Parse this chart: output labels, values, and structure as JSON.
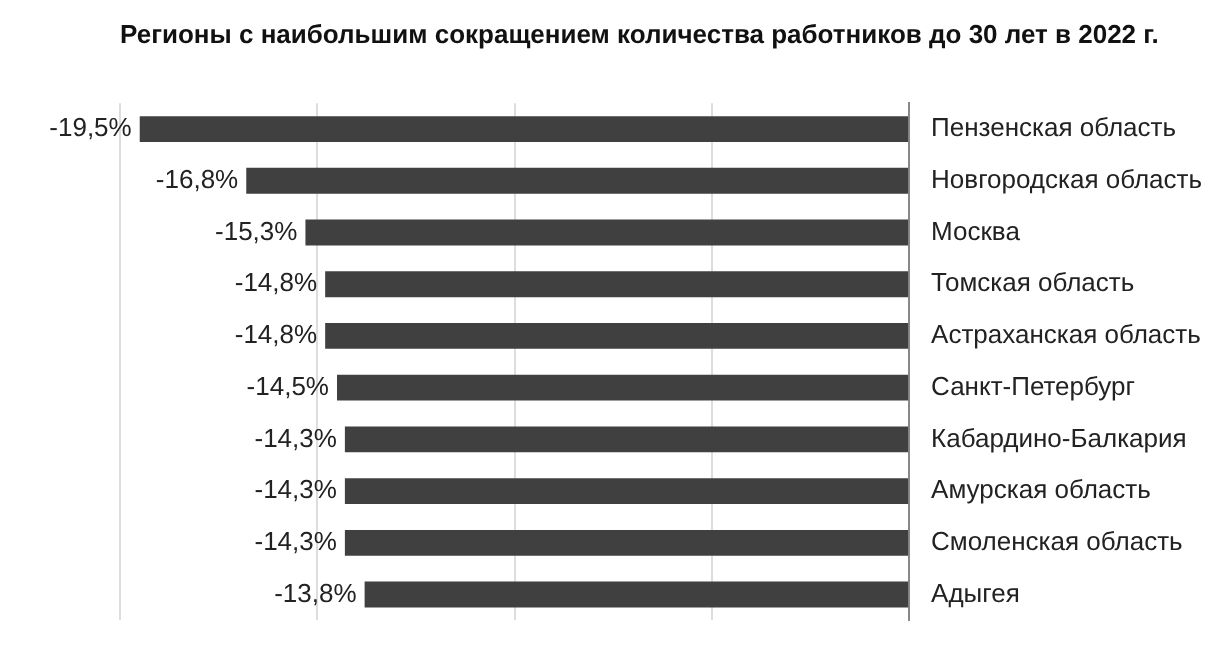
{
  "chart_data": {
    "type": "bar",
    "orientation": "horizontal",
    "title": "Регионы с наибольшим сокращением количества работников до 30 лет в 2022 г.",
    "categories": [
      "Пензенская область",
      "Новгородская область",
      "Москва",
      "Томская область",
      "Астраханская область",
      "Санкт-Петербург",
      "Кабардино-Балкария",
      "Амурская область",
      "Смоленская область",
      "Адыгея"
    ],
    "values": [
      -19.5,
      -16.8,
      -15.3,
      -14.8,
      -14.8,
      -14.5,
      -14.3,
      -14.3,
      -14.3,
      -13.8
    ],
    "value_labels": [
      "-19,5%",
      "-16,8%",
      "-15,3%",
      "-14,8%",
      "-14,8%",
      "-14,5%",
      "-14,3%",
      "-14,3%",
      "-14,3%",
      "-13,8%"
    ],
    "color": "#404040",
    "xlim": [
      -20,
      0
    ],
    "xticks": [
      {
        "value": -20,
        "label": null
      },
      {
        "value": -15,
        "label": null
      },
      {
        "value": -10,
        "label": null
      },
      {
        "value": -5,
        "label": null
      },
      {
        "value": 0,
        "label": null
      }
    ],
    "grid": "x",
    "tick_labels": "y",
    "legend": false
  }
}
